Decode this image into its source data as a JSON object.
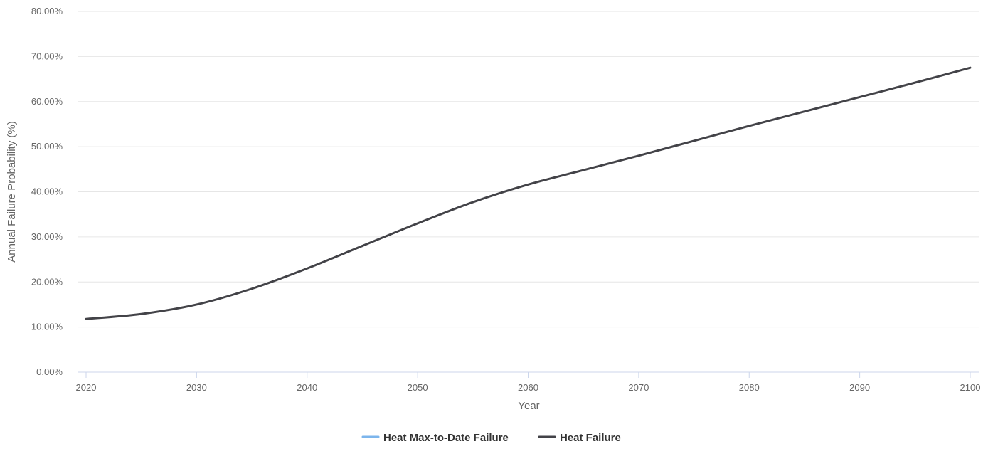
{
  "chart_data": {
    "type": "line",
    "title": "",
    "xlabel": "Year",
    "ylabel": "Annual Failure Probability (%)",
    "xlim": [
      2020,
      2100
    ],
    "ylim": [
      0,
      80
    ],
    "x_ticks": [
      "2020",
      "2030",
      "2040",
      "2050",
      "2060",
      "2070",
      "2080",
      "2090",
      "2100"
    ],
    "y_ticks": [
      "0.00%",
      "10.00%",
      "20.00%",
      "30.00%",
      "40.00%",
      "50.00%",
      "60.00%",
      "70.00%",
      "80.00%"
    ],
    "grid": true,
    "legend_position": "bottom-center",
    "x": [
      2020,
      2025,
      2030,
      2035,
      2040,
      2045,
      2050,
      2055,
      2060,
      2065,
      2070,
      2075,
      2080,
      2085,
      2090,
      2095,
      2100
    ],
    "series": [
      {
        "name": "Heat Max-to-Date Failure",
        "color": "#7cb5ec",
        "values": [
          11.8,
          12.9,
          15.0,
          18.5,
          23.0,
          28.0,
          33.0,
          37.7,
          41.6,
          44.8,
          48.0,
          51.3,
          54.6,
          57.8,
          61.0,
          64.2,
          67.5
        ]
      },
      {
        "name": "Heat Failure",
        "color": "#434348",
        "values": [
          11.8,
          12.9,
          15.0,
          18.5,
          23.0,
          28.0,
          33.0,
          37.7,
          41.6,
          44.8,
          48.0,
          51.3,
          54.6,
          57.8,
          61.0,
          64.2,
          67.5
        ]
      }
    ]
  }
}
